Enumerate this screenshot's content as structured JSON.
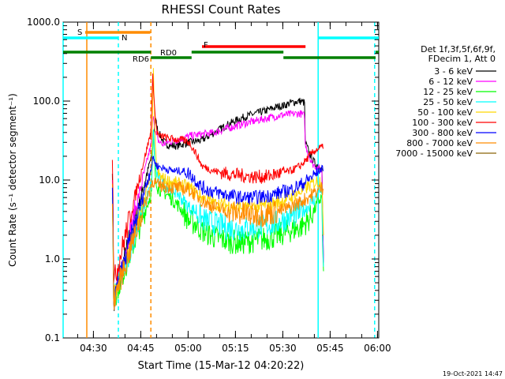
{
  "chart_data": {
    "type": "line",
    "title": "RHESSI Count Rates",
    "xlabel": "Start Time (15-Mar-12 04:20:22)",
    "ylabel": "Count Rate (s⁻¹ detector segment⁻¹)",
    "yscale": "log",
    "ylim": [
      0.1,
      1000
    ],
    "xlim_min": [
      0,
      100
    ],
    "xlim_note": "minutes after 04:20:22",
    "y_ticks": [
      {
        "value": 0.1,
        "label": "0.1"
      },
      {
        "value": 1,
        "label": "1.0"
      },
      {
        "value": 10,
        "label": "10.0"
      },
      {
        "value": 100,
        "label": "100.0"
      },
      {
        "value": 1000,
        "label": "1000.0"
      }
    ],
    "x_ticks": [
      {
        "t": 9.6,
        "label": "04:30"
      },
      {
        "t": 24.6,
        "label": "04:45"
      },
      {
        "t": 39.6,
        "label": "05:00"
      },
      {
        "t": 54.6,
        "label": "05:15"
      },
      {
        "t": 69.6,
        "label": "05:30"
      },
      {
        "t": 84.6,
        "label": "05:45"
      },
      {
        "t": 99.6,
        "label": "06:00"
      }
    ],
    "legend_header": [
      "Det 1f,3f,5f,6f,9f,",
      "FDecim 1, Att 0"
    ],
    "series": [
      {
        "name": "3 - 6 keV",
        "color": "#000000",
        "t": [
          15.6,
          15.8,
          16.0,
          28.0,
          28.6,
          29.2,
          30.0,
          31.5,
          33.0,
          36.0,
          40.0,
          44.0,
          48.0,
          52.0,
          56.0,
          60.0,
          64.0,
          68.0,
          70.0,
          72.0,
          75.0,
          76.5,
          76.7,
          78.0,
          79.0,
          80.0,
          81.0,
          82.0,
          82.2,
          82.5
        ],
        "v": [
          12,
          3.5,
          0.3,
          20,
          35,
          60,
          42,
          32,
          28,
          27,
          30,
          32,
          40,
          50,
          60,
          68,
          75,
          85,
          88,
          95,
          100,
          95,
          30,
          22,
          18,
          16,
          15,
          14,
          4,
          0.9
        ]
      },
      {
        "name": "6 - 12 keV",
        "color": "#ff00ff",
        "t": [
          15.6,
          15.8,
          16.0,
          28.0,
          28.6,
          29.2,
          30.0,
          31.5,
          33.0,
          36.0,
          40.0,
          44.0,
          48.0,
          52.0,
          56.0,
          60.0,
          64.0,
          68.0,
          70.0,
          72.0,
          75.0,
          76.5,
          76.7,
          78.0,
          79.0,
          80.0,
          81.0,
          82.0,
          82.2,
          82.5
        ],
        "v": [
          10,
          3,
          0.3,
          30,
          70,
          40,
          32,
          28,
          30,
          32,
          36,
          38,
          40,
          45,
          50,
          55,
          60,
          65,
          67,
          68,
          70,
          65,
          28,
          20,
          16,
          15,
          14,
          13,
          3.5,
          0.9
        ]
      },
      {
        "name": "12 - 25 keV",
        "color": "#00ff00",
        "t": [
          15.6,
          15.8,
          16.0,
          28.0,
          28.6,
          29.2,
          30.0,
          32.0,
          34.0,
          36.0,
          38.0,
          40.0,
          42.0,
          44.0,
          48.0,
          52.0,
          56.0,
          60.0,
          64.0,
          68.0,
          72.0,
          75.0,
          76.5,
          78.0,
          80.0,
          81.0,
          82.0,
          82.2,
          82.5
        ],
        "v": [
          6,
          1.8,
          0.3,
          7,
          40,
          12,
          8,
          7,
          6,
          5,
          4,
          3,
          2.8,
          2.3,
          1.9,
          1.7,
          1.6,
          1.7,
          1.8,
          2.0,
          2.3,
          2.5,
          2.8,
          3.2,
          4.5,
          5.5,
          6,
          1.5,
          0.7
        ]
      },
      {
        "name": "25 - 50 keV",
        "color": "#00ffff",
        "t": [
          15.6,
          15.8,
          16.0,
          28.0,
          28.6,
          29.2,
          30.0,
          32.0,
          34.0,
          36.0,
          38.0,
          40.0,
          42.0,
          44.0,
          48.0,
          52.0,
          56.0,
          60.0,
          64.0,
          68.0,
          72.0,
          75.0,
          76.5,
          78.0,
          80.0,
          81.0,
          82.0,
          82.2,
          82.5
        ],
        "v": [
          7,
          2.2,
          0.3,
          9,
          45,
          15,
          10,
          9,
          8,
          7,
          5.5,
          4.5,
          4.0,
          3.2,
          2.8,
          2.5,
          2.4,
          2.5,
          2.6,
          2.9,
          3.4,
          3.8,
          4.2,
          4.8,
          6.0,
          7.0,
          7.5,
          1.8,
          0.8
        ]
      },
      {
        "name": "50 - 100 keV",
        "color": "#ffd700",
        "t": [
          15.6,
          15.8,
          16.0,
          28.0,
          28.6,
          29.2,
          30.0,
          32.0,
          36.0,
          40.0,
          44.0,
          48.0,
          52.0,
          56.0,
          60.0,
          64.0,
          68.0,
          72.0,
          76.0,
          80.0,
          82.0,
          82.5
        ],
        "v": [
          9,
          3,
          0.3,
          12,
          250,
          25,
          12,
          10,
          9,
          8,
          6,
          5,
          4.8,
          4.5,
          4.5,
          4.8,
          5.2,
          6.0,
          7.5,
          9.5,
          10,
          2
        ]
      },
      {
        "name": "100 - 300 keV",
        "color": "#ff0000",
        "t": [
          15.6,
          15.8,
          16.0,
          27.8,
          28.4,
          28.8,
          29.2,
          29.8,
          30.5,
          31.5,
          33.0,
          35.0,
          38.0,
          40.0,
          42.0,
          44.0,
          48.0,
          52.0,
          56.0,
          60.0,
          64.0,
          68.0,
          72.0,
          75.0,
          76.5,
          78.0,
          80.0,
          82.0,
          82.5
        ],
        "v": [
          18,
          6,
          0.5,
          40,
          200,
          120,
          60,
          40,
          35,
          36,
          34,
          33,
          32,
          30,
          22,
          15,
          13,
          12,
          11.5,
          11,
          11,
          12,
          13,
          15,
          17,
          20,
          24,
          26,
          25
        ]
      },
      {
        "name": "300 - 800 keV",
        "color": "#0000ff",
        "t": [
          15.6,
          15.8,
          16.0,
          28.0,
          28.6,
          29.2,
          30.0,
          32.0,
          35.0,
          38.0,
          40.0,
          42.0,
          44.0,
          48.0,
          52.0,
          56.0,
          60.0,
          64.0,
          68.0,
          72.0,
          76.0,
          80.0,
          82.0,
          82.5
        ],
        "v": [
          8,
          3,
          0.3,
          15,
          20,
          16,
          15,
          14,
          13,
          13,
          12,
          10,
          8,
          7,
          6.5,
          6.0,
          6.0,
          6.2,
          6.8,
          7.5,
          9,
          12,
          14,
          13
        ]
      },
      {
        "name": "800 - 7000 keV",
        "color": "#ff8c00",
        "t": [
          15.6,
          15.8,
          16.0,
          28.0,
          28.6,
          29.2,
          30.0,
          32.0,
          35.0,
          38.0,
          40.0,
          42.0,
          44.0,
          48.0,
          52.0,
          56.0,
          60.0,
          64.0,
          68.0,
          72.0,
          76.0,
          80.0,
          82.0,
          82.5
        ],
        "v": [
          5,
          2,
          0.3,
          9,
          10,
          9,
          8.5,
          8.5,
          8.0,
          7.8,
          7.5,
          6.5,
          5.5,
          4.5,
          4.0,
          3.8,
          3.6,
          3.7,
          4.0,
          4.5,
          5.5,
          7.0,
          8.0,
          7.5
        ]
      },
      {
        "name": "7000 - 15000 keV",
        "color": "#8b6508",
        "t": [
          82.0,
          82.2
        ],
        "v": [
          2,
          2
        ]
      }
    ],
    "annotations": [
      {
        "label": "S",
        "color": "#ff8c00"
      },
      {
        "label": "N",
        "color": "#00ffff"
      },
      {
        "label": "RD0",
        "color": "#008000"
      },
      {
        "label": "RD6",
        "color": "#008000"
      },
      {
        "label": "F",
        "color": "#ff0000"
      }
    ],
    "state_bars": [
      {
        "label": "S",
        "color": "#ff8c00",
        "segments": [
          [
            7.0,
            27.6
          ]
        ]
      },
      {
        "label": "N",
        "color": "#00ffff",
        "segments": [
          [
            0,
            17.6
          ],
          [
            80.8,
            100
          ]
        ]
      },
      {
        "label": "RD0",
        "color": "#008000",
        "segments": [
          [
            0,
            27.8
          ],
          [
            40.7,
            69.8
          ],
          [
            99.0,
            100
          ]
        ]
      },
      {
        "label": "RD6",
        "color": "#008000",
        "segments": [
          [
            27.8,
            40.7
          ],
          [
            69.8,
            99.0
          ]
        ]
      },
      {
        "label": "F",
        "color": "#ff0000",
        "segments": [
          [
            44.0,
            76.8
          ]
        ]
      }
    ],
    "vertical_markers": [
      {
        "t": 0.0,
        "color": "#00ffff",
        "style": "solid"
      },
      {
        "t": 7.5,
        "color": "#ff8c00",
        "style": "solid"
      },
      {
        "t": 17.5,
        "color": "#00ffff",
        "style": "dashed"
      },
      {
        "t": 27.8,
        "color": "#ff8c00",
        "style": "dashed"
      },
      {
        "t": 80.8,
        "color": "#00ffff",
        "style": "solid"
      },
      {
        "t": 98.7,
        "color": "#00ffff",
        "style": "dashed"
      }
    ]
  },
  "footer_timestamp": "19-Oct-2021 14:47"
}
